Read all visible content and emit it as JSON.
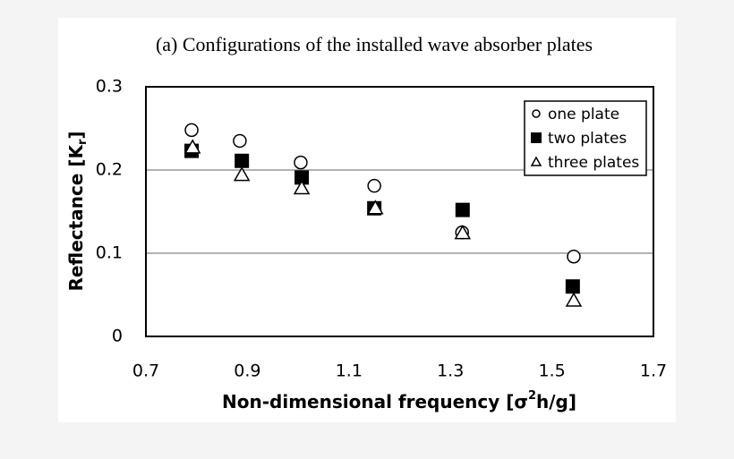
{
  "chart_data": {
    "type": "scatter",
    "title": "(a) Configurations of the installed wave absorber plates",
    "xlabel": [
      "Non-dimensional  frequency  [σ",
      "2",
      "h/g]"
    ],
    "ylabel": [
      "Reflectance  [K",
      "r",
      "]"
    ],
    "xlim": [
      0.7,
      1.7
    ],
    "xticks": [
      0.7,
      0.9,
      1.1,
      1.3,
      1.5,
      1.7
    ],
    "ylim": [
      0,
      0.3
    ],
    "yticks": [
      0,
      0.1,
      0.2,
      0.3
    ],
    "grid": true,
    "legend": "upper right",
    "series": [
      {
        "name": "one plate",
        "marker": "circle",
        "color": "#000000",
        "x": [
          0.79,
          0.885,
          1.005,
          1.15,
          1.323,
          1.543
        ],
        "values": [
          0.248,
          0.235,
          0.209,
          0.181,
          0.125,
          0.096
        ]
      },
      {
        "name": "two plates",
        "marker": "square",
        "color": "#000000",
        "x": [
          0.79,
          0.889,
          1.007,
          1.15,
          1.324,
          1.541
        ],
        "values": [
          0.223,
          0.211,
          0.191,
          0.154,
          0.152,
          0.06
        ]
      },
      {
        "name": "three plates",
        "marker": "triangle",
        "color": "#000000",
        "x": [
          0.792,
          0.889,
          1.007,
          1.152,
          1.324,
          1.543
        ],
        "values": [
          0.227,
          0.194,
          0.178,
          0.154,
          0.124,
          0.043
        ]
      }
    ]
  }
}
